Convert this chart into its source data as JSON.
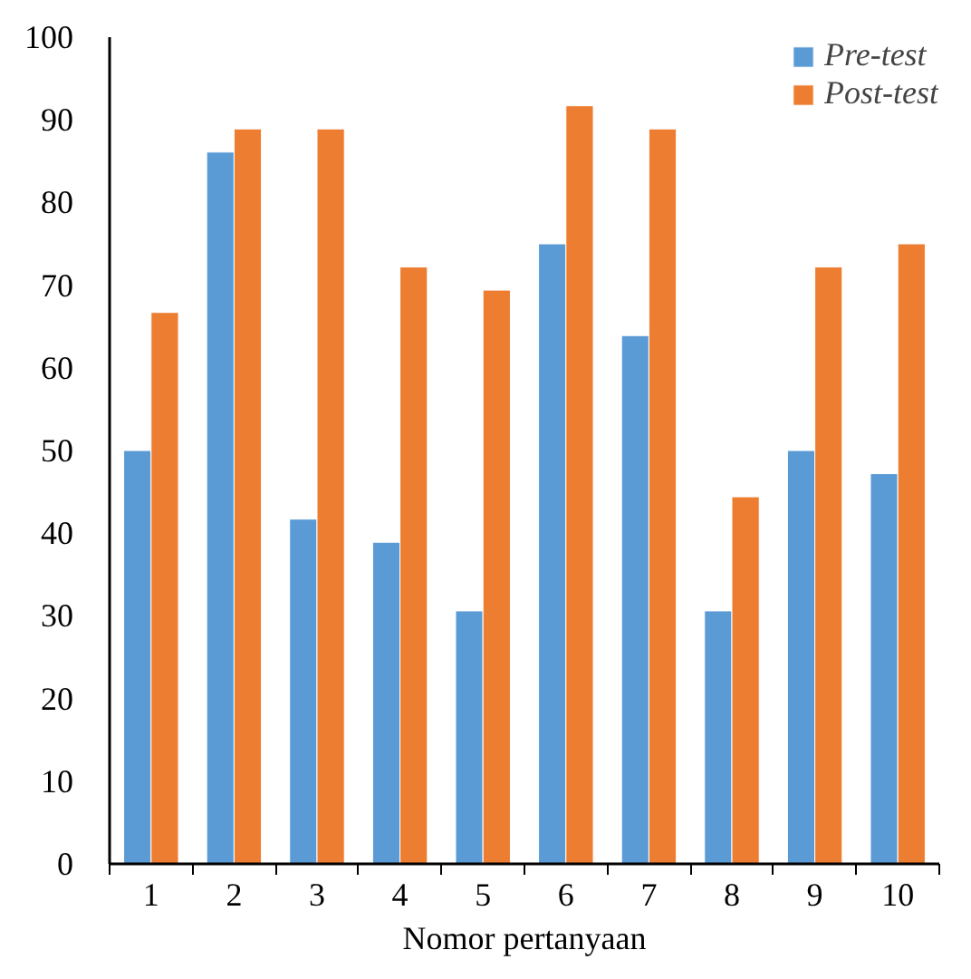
{
  "chart_data": {
    "type": "bar",
    "xlabel": "Nomor pertanyaan",
    "categories": [
      "1",
      "2",
      "3",
      "4",
      "5",
      "6",
      "7",
      "8",
      "9",
      "10"
    ],
    "series": [
      {
        "name": "Pre-test",
        "color": "#5b9bd5",
        "values": [
          50,
          86.1,
          41.7,
          38.9,
          30.6,
          75,
          63.9,
          30.6,
          50,
          47.2
        ]
      },
      {
        "name": "Post-test",
        "color": "#ed7d31",
        "values": [
          66.7,
          88.9,
          88.9,
          72.2,
          69.4,
          91.7,
          88.9,
          44.4,
          72.2,
          75
        ]
      }
    ],
    "ylim": [
      0,
      100
    ],
    "yticks": [
      0,
      10,
      20,
      30,
      40,
      50,
      60,
      70,
      80,
      90,
      100
    ],
    "grid": false,
    "legend": "top right"
  }
}
